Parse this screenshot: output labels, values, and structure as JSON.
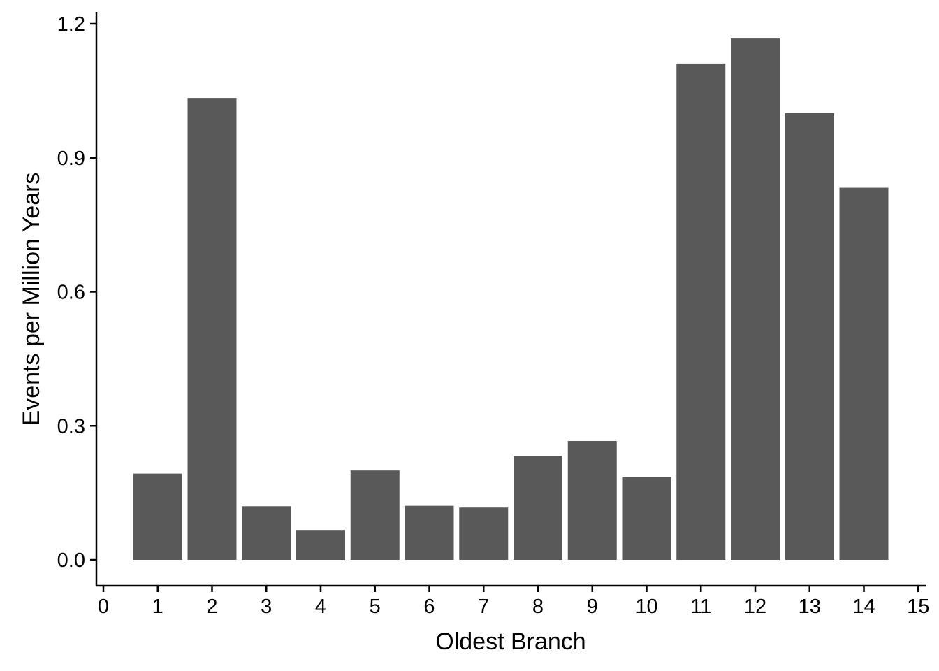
{
  "chart_data": {
    "type": "bar",
    "title": "",
    "xlabel": "Oldest Branch",
    "ylabel": "Events per Million Years",
    "categories": [
      1,
      2,
      3,
      4,
      5,
      6,
      7,
      8,
      9,
      10,
      11,
      12,
      13,
      14
    ],
    "values": [
      0.193,
      1.034,
      0.12,
      0.067,
      0.2,
      0.121,
      0.117,
      0.233,
      0.266,
      0.185,
      1.111,
      1.167,
      1.0,
      0.833
    ],
    "xlim": [
      0,
      15
    ],
    "ylim": [
      0,
      1.2
    ],
    "x_ticks": [
      "0",
      "1",
      "2",
      "3",
      "4",
      "5",
      "6",
      "7",
      "8",
      "9",
      "10",
      "11",
      "12",
      "13",
      "14",
      "15"
    ],
    "y_ticks": [
      "0.0",
      "0.3",
      "0.6",
      "0.9",
      "1.2"
    ],
    "bar_color": "#595959",
    "grid": false,
    "legend": "none"
  }
}
